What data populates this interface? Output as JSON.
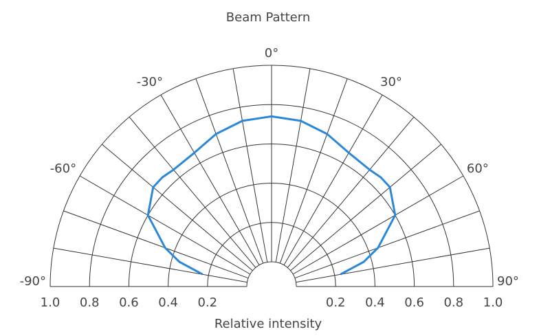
{
  "chart_data": {
    "type": "line",
    "title": "Beam Pattern",
    "xlabel": "Relative intensity",
    "angle_labels": [
      "-90°",
      "-60°",
      "-30°",
      "0°",
      "30°",
      "60°",
      "90°"
    ],
    "angle_label_values": [
      -90,
      -60,
      -30,
      0,
      30,
      60,
      90
    ],
    "radial_ticks": [
      0.2,
      0.4,
      0.6,
      0.8,
      1.0
    ],
    "radial_tick_labels": [
      "1.0",
      "0.8",
      "0.6",
      "0.4",
      "0.2",
      "0.2",
      "0.4",
      "0.6",
      "0.8",
      "1.0"
    ],
    "radial_range": [
      0,
      1.0
    ],
    "angular_range": [
      -90,
      90
    ],
    "grid": true,
    "series": [
      {
        "color": "#2B88D8",
        "x": [
          -80,
          -75,
          -70,
          -60,
          -50,
          -45,
          -40,
          -30,
          -20,
          -10,
          0,
          10,
          20,
          30,
          40,
          45,
          50,
          60,
          70,
          75,
          80
        ],
        "y": [
          0.23,
          0.36,
          0.45,
          0.6,
          0.66,
          0.66,
          0.65,
          0.66,
          0.7,
          0.73,
          0.74,
          0.73,
          0.7,
          0.66,
          0.65,
          0.66,
          0.66,
          0.6,
          0.45,
          0.36,
          0.23
        ]
      }
    ]
  }
}
